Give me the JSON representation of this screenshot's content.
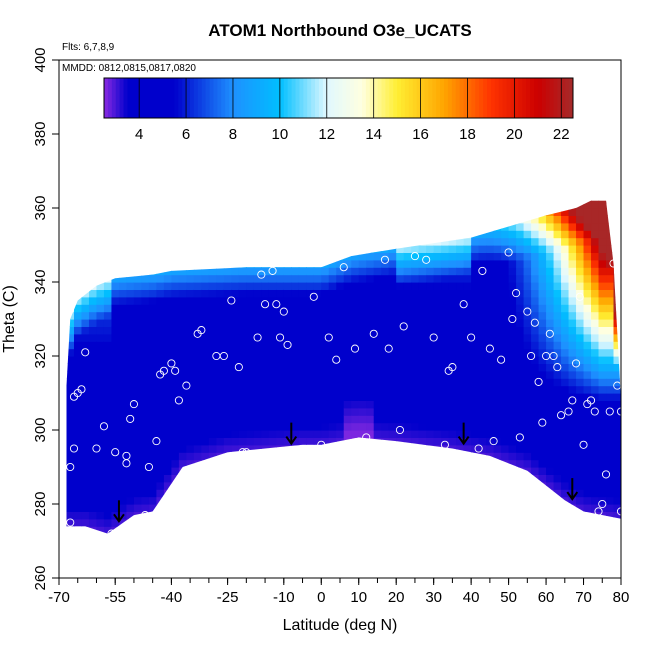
{
  "chart_data": {
    "type": "heatmap",
    "title": "ATOM1 Northbound O3e_UCATS",
    "flights_note": "Flts: 6,7,8,9",
    "dates_note": "MMDD: 0812,0815,0817,0820",
    "xlabel": "Latitude (deg N)",
    "ylabel": "Theta (C)",
    "xlim": [
      -70,
      80
    ],
    "ylim": [
      260,
      400
    ],
    "x_ticks": [
      -70,
      -55,
      -40,
      -25,
      -10,
      0,
      10,
      20,
      30,
      40,
      50,
      60,
      70,
      80
    ],
    "x_tick_labels": [
      "-70",
      "-55",
      "-40",
      "-25",
      "-10",
      "0",
      "10",
      "20",
      "30",
      "40",
      "50",
      "60",
      "70",
      "80"
    ],
    "x_minor_step": 5,
    "y_ticks": [
      260,
      280,
      300,
      320,
      340,
      360,
      380,
      400
    ],
    "y_tick_labels": [
      "260",
      "280",
      "300",
      "320",
      "340",
      "360",
      "380",
      "400"
    ],
    "colorbar": {
      "range": [
        2.5,
        22.5
      ],
      "ticks": [
        4,
        6,
        8,
        10,
        12,
        14,
        16,
        18,
        20,
        22
      ],
      "tick_labels": [
        "4",
        "6",
        "8",
        "10",
        "12",
        "14",
        "16",
        "18",
        "20",
        "22"
      ],
      "stops": [
        [
          2.5,
          "#8a2be2"
        ],
        [
          3.5,
          "#0000cc"
        ],
        [
          5.5,
          "#0000cc"
        ],
        [
          8,
          "#1e90ff"
        ],
        [
          10,
          "#00bfff"
        ],
        [
          12,
          "#e0f8ff"
        ],
        [
          13.5,
          "#ffffe0"
        ],
        [
          15,
          "#ffee33"
        ],
        [
          17,
          "#ffa500"
        ],
        [
          19,
          "#ff3300"
        ],
        [
          21,
          "#cc0000"
        ],
        [
          22.5,
          "#a52a2a"
        ]
      ]
    },
    "field": {
      "lat_range": [
        -68,
        80
      ],
      "theta_range": [
        272,
        362
      ],
      "top_boundary": [
        [
          -68,
          312
        ],
        [
          -67,
          330
        ],
        [
          -65,
          335
        ],
        [
          -60,
          339
        ],
        [
          -55,
          341
        ],
        [
          -45,
          342
        ],
        [
          -40,
          343
        ],
        [
          -20,
          344
        ],
        [
          0,
          344
        ],
        [
          8,
          347
        ],
        [
          20,
          349
        ],
        [
          40,
          352
        ],
        [
          50,
          355
        ],
        [
          60,
          358
        ],
        [
          68,
          360
        ],
        [
          72,
          362
        ],
        [
          76,
          362
        ],
        [
          78,
          345
        ],
        [
          80,
          308
        ]
      ],
      "bottom_boundary": [
        [
          -68,
          274
        ],
        [
          -63,
          274
        ],
        [
          -57,
          272
        ],
        [
          -50,
          277
        ],
        [
          -45,
          278
        ],
        [
          -37,
          290
        ],
        [
          -25,
          294
        ],
        [
          -15,
          295
        ],
        [
          -5,
          296
        ],
        [
          0,
          296
        ],
        [
          10,
          298
        ],
        [
          20,
          297
        ],
        [
          35,
          295
        ],
        [
          45,
          293
        ],
        [
          55,
          289
        ],
        [
          65,
          281
        ],
        [
          70,
          278
        ],
        [
          80,
          276
        ]
      ]
    },
    "observations": [
      [
        -67,
        275
      ],
      [
        -67,
        290
      ],
      [
        -66,
        295
      ],
      [
        -66,
        309
      ],
      [
        -65,
        310
      ],
      [
        -64,
        311
      ],
      [
        -63,
        321
      ],
      [
        -60,
        295
      ],
      [
        -58,
        301
      ],
      [
        -56,
        272
      ],
      [
        -55,
        294
      ],
      [
        -52,
        291
      ],
      [
        -52,
        293
      ],
      [
        -51,
        303
      ],
      [
        -50,
        307
      ],
      [
        -49,
        275
      ],
      [
        -47,
        277
      ],
      [
        -46,
        290
      ],
      [
        -44,
        297
      ],
      [
        -43,
        315
      ],
      [
        -42,
        316
      ],
      [
        -40,
        318
      ],
      [
        -39,
        316
      ],
      [
        -38,
        308
      ],
      [
        -36,
        312
      ],
      [
        -35,
        289
      ],
      [
        -33,
        326
      ],
      [
        -32,
        327
      ],
      [
        -30,
        291
      ],
      [
        -28,
        320
      ],
      [
        -26,
        320
      ],
      [
        -24,
        335
      ],
      [
        -22,
        317
      ],
      [
        -21,
        294
      ],
      [
        -20,
        294
      ],
      [
        -17,
        325
      ],
      [
        -16,
        342
      ],
      [
        -15,
        334
      ],
      [
        -13,
        343
      ],
      [
        -12,
        334
      ],
      [
        -11,
        325
      ],
      [
        -10,
        332
      ],
      [
        -9,
        323
      ],
      [
        -7,
        347
      ],
      [
        -4,
        346
      ],
      [
        -2,
        336
      ],
      [
        0,
        296
      ],
      [
        2,
        325
      ],
      [
        4,
        319
      ],
      [
        6,
        344
      ],
      [
        9,
        322
      ],
      [
        12,
        298
      ],
      [
        14,
        326
      ],
      [
        17,
        346
      ],
      [
        18,
        322
      ],
      [
        21,
        300
      ],
      [
        22,
        328
      ],
      [
        25,
        347
      ],
      [
        28,
        346
      ],
      [
        30,
        325
      ],
      [
        33,
        296
      ],
      [
        34,
        316
      ],
      [
        35,
        317
      ],
      [
        38,
        334
      ],
      [
        40,
        325
      ],
      [
        42,
        295
      ],
      [
        43,
        343
      ],
      [
        45,
        322
      ],
      [
        46,
        297
      ],
      [
        48,
        319
      ],
      [
        50,
        348
      ],
      [
        51,
        330
      ],
      [
        52,
        337
      ],
      [
        53,
        298
      ],
      [
        55,
        332
      ],
      [
        56,
        320
      ],
      [
        57,
        329
      ],
      [
        58,
        313
      ],
      [
        59,
        302
      ],
      [
        60,
        320
      ],
      [
        61,
        326
      ],
      [
        62,
        320
      ],
      [
        63,
        317
      ],
      [
        64,
        304
      ],
      [
        66,
        305
      ],
      [
        67,
        308
      ],
      [
        68,
        318
      ],
      [
        69,
        336
      ],
      [
        70,
        296
      ],
      [
        71,
        307
      ],
      [
        72,
        308
      ],
      [
        73,
        305
      ],
      [
        74,
        278
      ],
      [
        75,
        280
      ],
      [
        76,
        288
      ],
      [
        77,
        305
      ],
      [
        78,
        345
      ],
      [
        79,
        312
      ],
      [
        80,
        305
      ],
      [
        80,
        278
      ]
    ],
    "arrows": [
      [
        -54,
        281
      ],
      [
        -8,
        302
      ],
      [
        38,
        302
      ],
      [
        67,
        287
      ]
    ]
  }
}
